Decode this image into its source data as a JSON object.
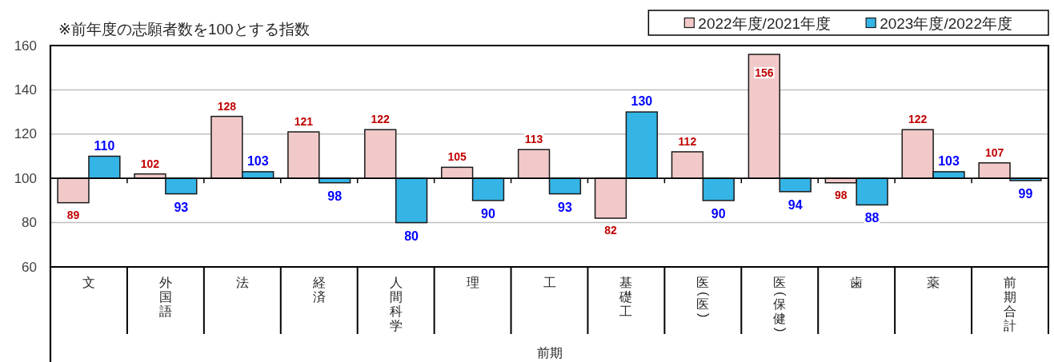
{
  "chart_data": {
    "type": "bar",
    "annotations": [
      "※前年度の志願者数を100とする指数"
    ],
    "xlabel": "前期",
    "categories": [
      "文",
      "外国語",
      "法",
      "経済",
      "人間科学",
      "理",
      "工",
      "基礎工",
      "医(医)",
      "医(保健)",
      "歯",
      "薬",
      "前期合計"
    ],
    "series": [
      {
        "name": "2022年度/2021年度",
        "color": "#f2c9c9",
        "base": [
          100,
          100,
          100,
          100,
          100,
          100,
          100,
          100,
          100,
          100,
          100,
          100,
          100
        ],
        "values": [
          -11,
          2,
          28,
          21,
          22,
          5,
          13,
          -18,
          12,
          56,
          -2,
          22,
          7
        ],
        "value_labels": [
          "89",
          "102",
          "128",
          "121",
          "122",
          "105",
          "113",
          "82",
          "112",
          "156",
          "98",
          "122",
          "107"
        ]
      },
      {
        "name": "2023年度/2022年度",
        "color": "#35b4e6",
        "base": [
          100,
          100,
          100,
          100,
          100,
          100,
          100,
          100,
          100,
          100,
          100,
          100,
          100
        ],
        "values": [
          10,
          -7,
          3,
          -2,
          -20,
          -10,
          -7,
          30,
          -10,
          -6,
          -12,
          3,
          -1
        ],
        "value_labels": [
          "110",
          "93",
          "103",
          "98",
          "80",
          "90",
          "93",
          "130",
          "90",
          "94",
          "88",
          "103",
          "99"
        ]
      }
    ],
    "ylim": [
      60,
      160
    ],
    "yticks": [
      60,
      80,
      100,
      120,
      140,
      160
    ],
    "grid": "y",
    "legend": "top right",
    "ref_lines": [
      {
        "axis": "y",
        "value": 100,
        "color": "#000000"
      }
    ]
  }
}
